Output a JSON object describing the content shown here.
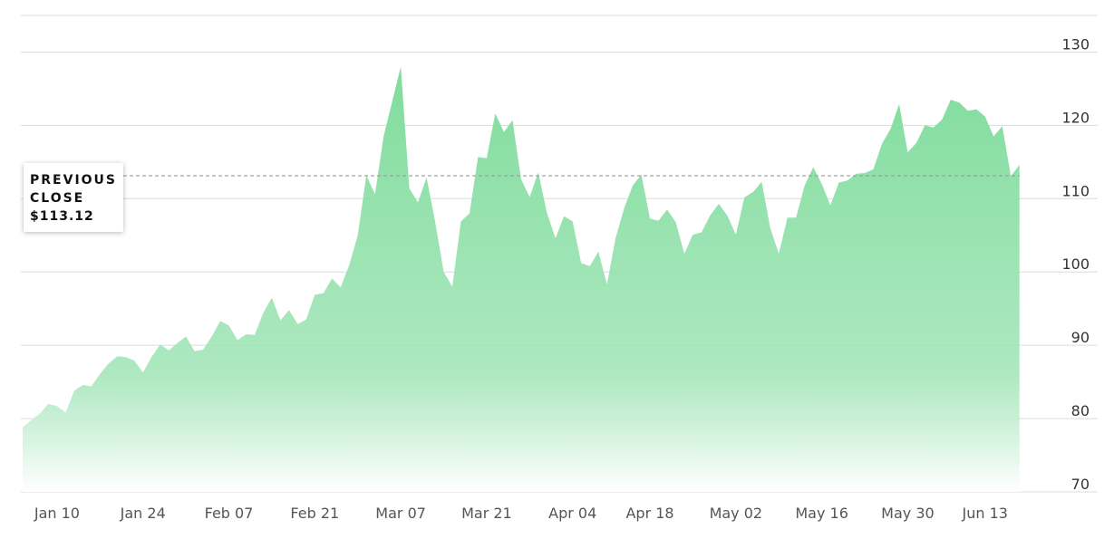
{
  "chart_data": {
    "type": "area",
    "title": "",
    "xlabel": "",
    "ylabel": "",
    "ylim": [
      70,
      135
    ],
    "yticks": [
      70,
      80,
      90,
      100,
      110,
      120,
      130
    ],
    "xticks": [
      {
        "label": "Jan 10",
        "i": 4
      },
      {
        "label": "Jan 24",
        "i": 14
      },
      {
        "label": "Feb 07",
        "i": 24
      },
      {
        "label": "Feb 21",
        "i": 34
      },
      {
        "label": "Mar 07",
        "i": 44
      },
      {
        "label": "Mar 21",
        "i": 54
      },
      {
        "label": "Apr 04",
        "i": 64
      },
      {
        "label": "Apr 18",
        "i": 73
      },
      {
        "label": "May 02",
        "i": 83
      },
      {
        "label": "May 16",
        "i": 93
      },
      {
        "label": "May 30",
        "i": 103
      },
      {
        "label": "Jun 13",
        "i": 112
      }
    ],
    "grid": true,
    "color": "#7fdc9c",
    "reference_line": {
      "label_line1": "PREVIOUS",
      "label_line2": "CLOSE",
      "value_text": "$113.12",
      "value": 113.12
    },
    "values": [
      78.8,
      79.8,
      80.7,
      82.0,
      81.7,
      80.8,
      83.8,
      84.6,
      84.4,
      86.1,
      87.5,
      88.5,
      88.4,
      87.9,
      86.3,
      88.4,
      90.1,
      89.3,
      90.3,
      91.2,
      89.2,
      89.4,
      91.2,
      93.3,
      92.7,
      90.7,
      91.5,
      91.4,
      94.4,
      96.5,
      93.4,
      94.8,
      92.9,
      93.5,
      96.9,
      97.1,
      99.1,
      97.9,
      100.9,
      105.0,
      113.2,
      110.6,
      118.5,
      123.2,
      128.0,
      111.4,
      109.5,
      112.9,
      106.9,
      100.0,
      98.0,
      106.9,
      108.0,
      115.7,
      115.5,
      121.6,
      119.1,
      120.7,
      112.7,
      110.2,
      113.6,
      108.1,
      104.6,
      107.6,
      106.9,
      101.2,
      100.8,
      102.8,
      98.3,
      104.6,
      108.7,
      111.8,
      113.3,
      107.3,
      107.0,
      108.5,
      106.8,
      102.5,
      105.1,
      105.4,
      107.7,
      109.3,
      107.7,
      105.1,
      110.2,
      110.9,
      112.3,
      106.0,
      102.5,
      107.4,
      107.4,
      111.8,
      114.3,
      112.0,
      109.1,
      112.2,
      112.5,
      113.4,
      113.5,
      114.0,
      117.5,
      119.5,
      122.9,
      116.3,
      117.6,
      120.0,
      119.7,
      120.8,
      123.5,
      123.1,
      122.0,
      122.2,
      121.2,
      118.5,
      119.9,
      113.1,
      114.6
    ]
  }
}
